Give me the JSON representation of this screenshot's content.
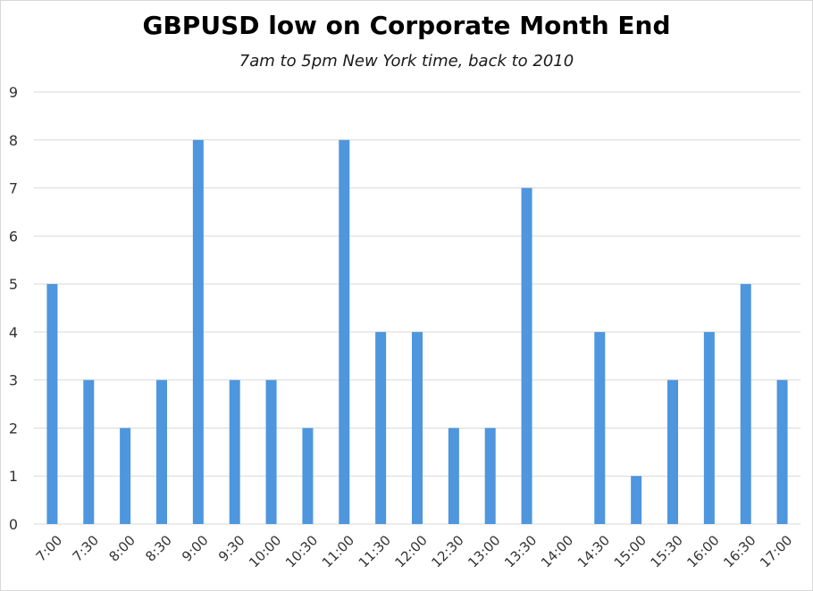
{
  "chart_data": {
    "type": "bar",
    "title": "GBPUSD low on Corporate Month End",
    "subtitle": "7am to 5pm New York time, back to 2010",
    "categories": [
      "7:00",
      "7:30",
      "8:00",
      "8:30",
      "9:00",
      "9:30",
      "10:00",
      "10:30",
      "11:00",
      "11:30",
      "12:00",
      "12:30",
      "13:00",
      "13:30",
      "14:00",
      "14:30",
      "15:00",
      "15:30",
      "16:00",
      "16:30",
      "17:00"
    ],
    "values": [
      5,
      3,
      2,
      3,
      8,
      3,
      3,
      2,
      8,
      4,
      4,
      2,
      2,
      7,
      0,
      4,
      1,
      3,
      4,
      5,
      3
    ],
    "xlabel": "",
    "ylabel": "",
    "ylim": [
      0,
      9
    ],
    "yticks": [
      0,
      1,
      2,
      3,
      4,
      5,
      6,
      7,
      8,
      9
    ],
    "grid": true,
    "colors": {
      "bar": "#4e96dd",
      "grid": "#d9d9d9"
    }
  }
}
